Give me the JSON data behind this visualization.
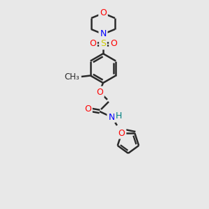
{
  "bg_color": "#e8e8e8",
  "bond_color": "#2a2a2a",
  "bond_width": 1.8,
  "atom_colors": {
    "O": "#ff0000",
    "N": "#0000ff",
    "S": "#cccc00",
    "H": "#008080",
    "C": "#2a2a2a"
  },
  "font_size": 9,
  "figsize": [
    3.0,
    3.0
  ],
  "dpi": 100
}
